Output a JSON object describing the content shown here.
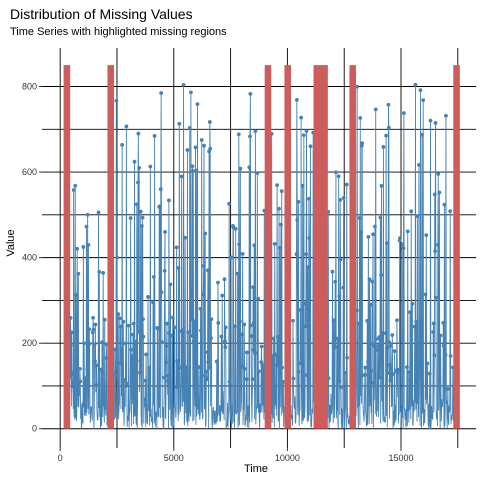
{
  "chart_data": {
    "type": "line",
    "title": "Distribution of Missing Values",
    "subtitle": "Time Series with highlighted missing regions",
    "xlabel": "Time",
    "ylabel": "Value",
    "xlim": [
      -800,
      18300
    ],
    "ylim": [
      -45,
      890
    ],
    "x_ticks": [
      0,
      5000,
      10000,
      15000
    ],
    "x_tick_labels": [
      "0",
      "5000",
      "10000",
      "15000"
    ],
    "y_ticks": [
      0,
      200,
      400,
      600,
      800
    ],
    "y_tick_labels": [
      "0",
      "200",
      "400",
      "600",
      "800"
    ],
    "grid": "major and minor, black",
    "legend": "none",
    "series_color": "#4682b4",
    "missing_color": "#cd5c5c",
    "missing_regions": [
      {
        "start": 150,
        "end": 440
      },
      {
        "start": 2080,
        "end": 2370
      },
      {
        "start": 9000,
        "end": 9290
      },
      {
        "start": 9870,
        "end": 10160
      },
      {
        "start": 11150,
        "end": 11780
      },
      {
        "start": 12730,
        "end": 13020
      },
      {
        "start": 17300,
        "end": 17590
      }
    ],
    "missing_height": 850,
    "series_ranges": [
      {
        "start": 440,
        "end": 2080,
        "peak": 615
      },
      {
        "start": 2370,
        "end": 9000,
        "peak": 805
      },
      {
        "start": 9290,
        "end": 9870,
        "peak": 770
      },
      {
        "start": 10160,
        "end": 11150,
        "peak": 800
      },
      {
        "start": 11780,
        "end": 12730,
        "peak": 620
      },
      {
        "start": 13020,
        "end": 17300,
        "peak": 810
      }
    ]
  }
}
